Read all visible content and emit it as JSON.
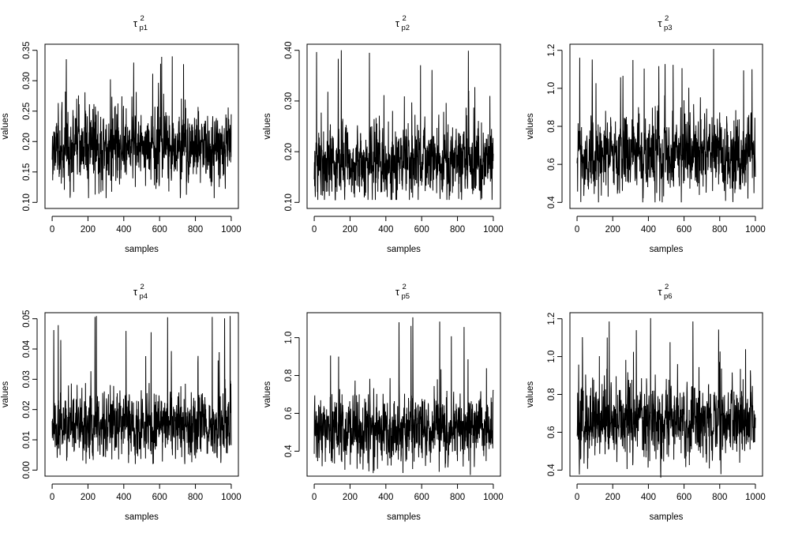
{
  "chart_data": [
    {
      "type": "line",
      "title_symbol": "τ",
      "title_superscript": "2",
      "title_subscript": "p1",
      "xlabel": "samples",
      "ylabel": "values",
      "n_samples": 1000,
      "xlim": [
        0,
        1000
      ],
      "x_ticks": [
        0,
        200,
        400,
        600,
        800,
        1000
      ],
      "ylim": [
        0.1,
        0.35
      ],
      "y_ticks": [
        "0.10",
        "0.15",
        "0.20",
        "0.25",
        "0.30",
        "0.35"
      ],
      "baseline": 0.19,
      "typical_low": 0.14,
      "typical_high": 0.26,
      "min": 0.107,
      "max": 0.35
    },
    {
      "type": "line",
      "title_symbol": "τ",
      "title_superscript": "2",
      "title_subscript": "p2",
      "xlabel": "samples",
      "ylabel": "values",
      "n_samples": 1000,
      "xlim": [
        0,
        1000
      ],
      "x_ticks": [
        0,
        200,
        400,
        600,
        800,
        1000
      ],
      "ylim": [
        0.1,
        0.4
      ],
      "y_ticks": [
        "0.10",
        "0.20",
        "0.30",
        "0.40"
      ],
      "baseline": 0.18,
      "typical_low": 0.125,
      "typical_high": 0.27,
      "min": 0.105,
      "max": 0.405
    },
    {
      "type": "line",
      "title_symbol": "τ",
      "title_superscript": "2",
      "title_subscript": "p3",
      "xlabel": "samples",
      "ylabel": "values",
      "n_samples": 1000,
      "xlim": [
        0,
        1000
      ],
      "x_ticks": [
        0,
        200,
        400,
        600,
        800,
        1000
      ],
      "ylim": [
        0.4,
        1.2
      ],
      "y_ticks": [
        "0.4",
        "0.6",
        "0.8",
        "1.0",
        "1.2"
      ],
      "baseline": 0.66,
      "typical_low": 0.5,
      "typical_high": 0.9,
      "min": 0.4,
      "max": 1.22
    },
    {
      "type": "line",
      "title_symbol": "τ",
      "title_superscript": "2",
      "title_subscript": "p4",
      "xlabel": "samples",
      "ylabel": "values",
      "n_samples": 1000,
      "xlim": [
        0,
        1000
      ],
      "x_ticks": [
        0,
        200,
        400,
        600,
        800,
        1000
      ],
      "ylim": [
        0.0,
        0.05
      ],
      "y_ticks": [
        "0.00",
        "0.01",
        "0.02",
        "0.03",
        "0.04",
        "0.05"
      ],
      "baseline": 0.015,
      "typical_low": 0.007,
      "typical_high": 0.028,
      "min": 0.002,
      "max": 0.052
    },
    {
      "type": "line",
      "title_symbol": "τ",
      "title_superscript": "2",
      "title_subscript": "p5",
      "xlabel": "samples",
      "ylabel": "values",
      "n_samples": 1000,
      "xlim": [
        0,
        1000
      ],
      "x_ticks": [
        0,
        200,
        400,
        600,
        800,
        1000
      ],
      "ylim": [
        0.3,
        1.1
      ],
      "y_ticks": [
        "0.4",
        "0.6",
        "0.8",
        "1.0"
      ],
      "baseline": 0.52,
      "typical_low": 0.38,
      "typical_high": 0.72,
      "min": 0.26,
      "max": 1.11
    },
    {
      "type": "line",
      "title_symbol": "τ",
      "title_superscript": "2",
      "title_subscript": "p6",
      "xlabel": "samples",
      "ylabel": "values",
      "n_samples": 1000,
      "xlim": [
        0,
        1000
      ],
      "x_ticks": [
        0,
        200,
        400,
        600,
        800,
        1000
      ],
      "ylim": [
        0.4,
        1.2
      ],
      "y_ticks": [
        "0.4",
        "0.6",
        "0.8",
        "1.0",
        "1.2"
      ],
      "baseline": 0.66,
      "typical_low": 0.5,
      "typical_high": 0.88,
      "min": 0.36,
      "max": 1.22
    }
  ]
}
